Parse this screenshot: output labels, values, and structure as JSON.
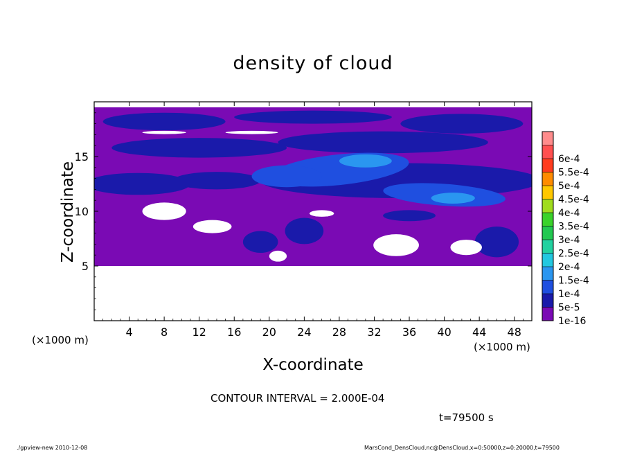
{
  "chart_data": {
    "type": "heatmap",
    "title": "density of cloud",
    "xlabel": "X-coordinate",
    "ylabel": "Z-coordinate",
    "x_unit_left": "(×1000 m)",
    "x_unit_right": "(×1000 m)",
    "xlim": [
      0,
      50
    ],
    "ylim": [
      0,
      20
    ],
    "x_ticks": [
      4,
      8,
      12,
      16,
      20,
      24,
      28,
      32,
      36,
      40,
      44,
      48
    ],
    "y_ticks": [
      5,
      10,
      15
    ],
    "colorbar": {
      "levels": [
        "1e-16",
        "5e-5",
        "1e-4",
        "1.5e-4",
        "2e-4",
        "2.5e-4",
        "3e-4",
        "3.5e-4",
        "4e-4",
        "4.5e-4",
        "5e-4",
        "5.5e-4",
        "6e-4"
      ],
      "colors": [
        "#7a0ab4",
        "#1a1aaa",
        "#1f4fe0",
        "#2a96f0",
        "#22c8e0",
        "#22d2a0",
        "#22c850",
        "#3ad22a",
        "#a0dc1e",
        "#ffc800",
        "#ff8c00",
        "#ff3c1e",
        "#ff5050",
        "#ff8c8c"
      ]
    },
    "data_regions": [
      {
        "name": "base purple layer",
        "x_range": [
          0,
          50
        ],
        "z_range": [
          5,
          19.5
        ],
        "level": "1e-16"
      },
      {
        "name": "upper band",
        "x_range": [
          1,
          50
        ],
        "z_range": [
          17,
          19
        ],
        "level": "5e-5"
      },
      {
        "name": "mid band",
        "x_range": [
          0,
          50
        ],
        "z_range": [
          11.5,
          16.5
        ],
        "level": "5e-5"
      },
      {
        "name": "main cloud",
        "x_range": [
          18,
          48
        ],
        "z_range": [
          10,
          15.5
        ],
        "level": "1e-4"
      },
      {
        "name": "lower blobs",
        "x_range": [
          17,
          48
        ],
        "z_range": [
          5.5,
          9
        ],
        "level": "5e-5"
      }
    ]
  },
  "labels": {
    "contour_interval": "CONTOUR INTERVAL = 2.000E-04",
    "time": "t=79500 s",
    "footer_left": "./gpview-new  2010-12-08",
    "footer_right": "MarsCond_DensCloud.nc@DensCloud,x=0:50000,z=0:20000,t=79500"
  }
}
